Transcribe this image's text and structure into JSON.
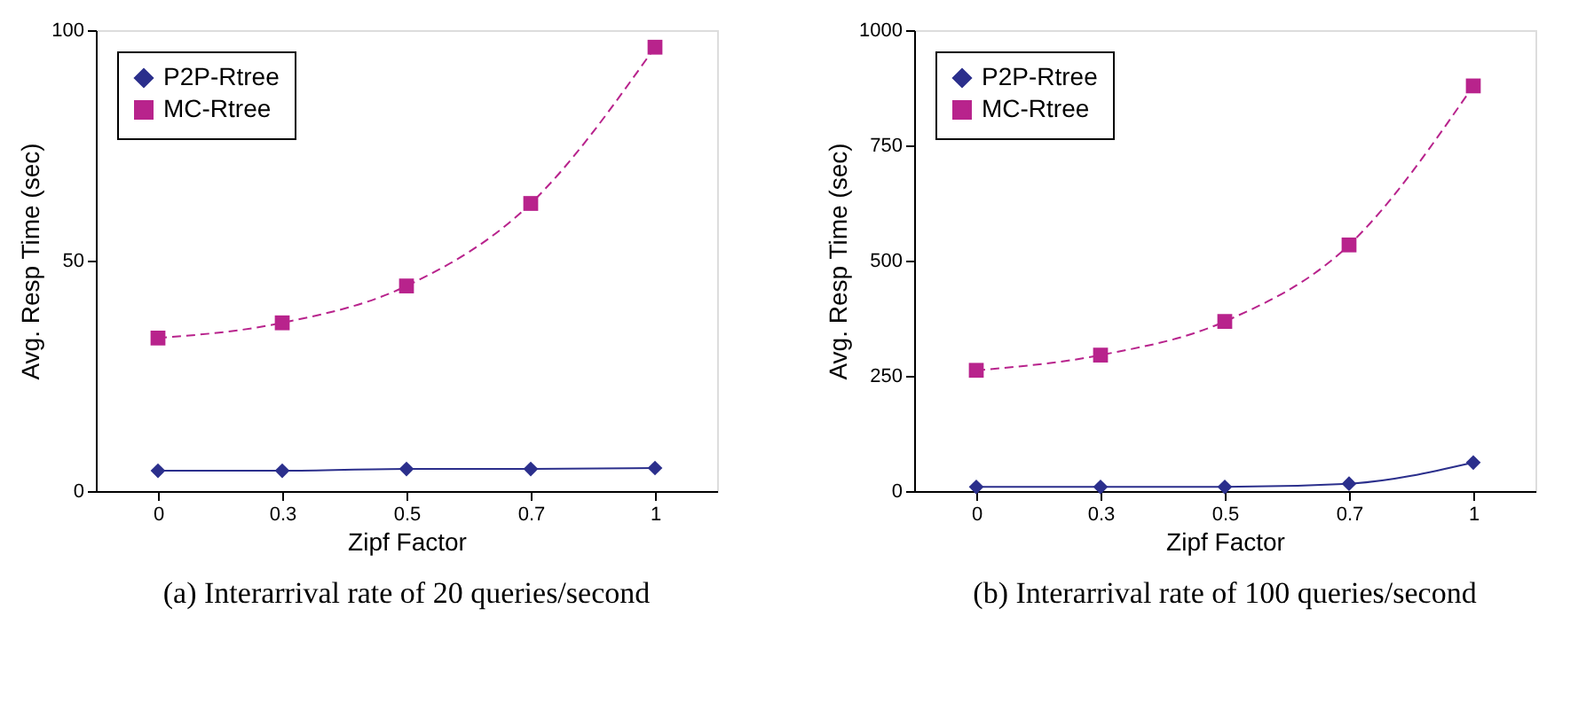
{
  "chart_data": [
    {
      "type": "line",
      "xlabel": "Zipf Factor",
      "ylabel": "Avg. Resp Time (sec)",
      "categories": [
        "0",
        "0.3",
        "0.5",
        "0.7",
        "1"
      ],
      "ylim": [
        0,
        100
      ],
      "yticks": [
        0,
        50,
        100
      ],
      "legend": "top left",
      "grid": false,
      "annotations": [
        "(a) Interarrival rate of 20 queries/second"
      ],
      "series": [
        {
          "name": "P2P-Rtree",
          "color": "#2b2f8c",
          "marker": "diamond",
          "line_style": "solid",
          "values": [
            4.4,
            4.4,
            4.8,
            4.8,
            5.0
          ]
        },
        {
          "name": "MC-Rtree",
          "color": "#b8238c",
          "marker": "square",
          "line_style": "dashed",
          "values": [
            33.2,
            36.5,
            44.5,
            62.4,
            96.3
          ]
        }
      ]
    },
    {
      "type": "line",
      "xlabel": "Zipf Factor",
      "ylabel": "Avg. Resp Time (sec)",
      "categories": [
        "0",
        "0.3",
        "0.5",
        "0.7",
        "1"
      ],
      "ylim": [
        0,
        1000
      ],
      "yticks": [
        0,
        250,
        500,
        750,
        1000
      ],
      "legend": "top left",
      "grid": false,
      "annotations": [
        "(b) Interarrival rate of 100 queries/second"
      ],
      "series": [
        {
          "name": "P2P-Rtree",
          "color": "#2b2f8c",
          "marker": "diamond",
          "line_style": "solid",
          "values": [
            9,
            9,
            9,
            16,
            62
          ]
        },
        {
          "name": "MC-Rtree",
          "color": "#b8238c",
          "marker": "square",
          "line_style": "dashed",
          "values": [
            262,
            295,
            368,
            534,
            879
          ]
        }
      ]
    }
  ]
}
